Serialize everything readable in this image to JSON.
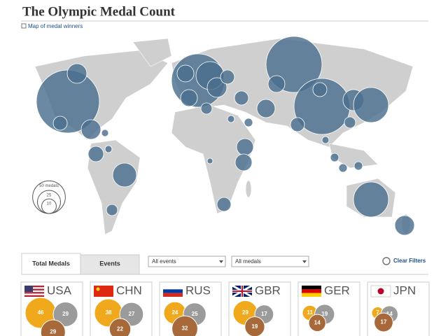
{
  "header": {
    "title": "The Olympic Medal Count",
    "link": "Map of medal winners"
  },
  "legend": {
    "sizes": [
      {
        "value": 50,
        "label": "50 medals"
      },
      25,
      10
    ]
  },
  "tabs": [
    "Total Medals",
    "Events"
  ],
  "filters": [
    "All events",
    "All medals"
  ],
  "clear_filters": "Clear Filters",
  "colors": {
    "gold": "#f0a81c",
    "silver": "#9b9b9b",
    "bronze": "#a8693a"
  },
  "countries": [
    {
      "code": "USA",
      "gold": 46,
      "silver": 29,
      "bronze": 29
    },
    {
      "code": "CHN",
      "gold": 38,
      "silver": 27,
      "bronze": 22
    },
    {
      "code": "RUS",
      "gold": 24,
      "silver": 25,
      "bronze": 32
    },
    {
      "code": "GBR",
      "gold": 29,
      "silver": 17,
      "bronze": 19
    },
    {
      "code": "GER",
      "gold": 11,
      "silver": 19,
      "bronze": 14
    },
    {
      "code": "JPN",
      "gold": 7,
      "silver": 14,
      "bronze": 17
    }
  ]
}
